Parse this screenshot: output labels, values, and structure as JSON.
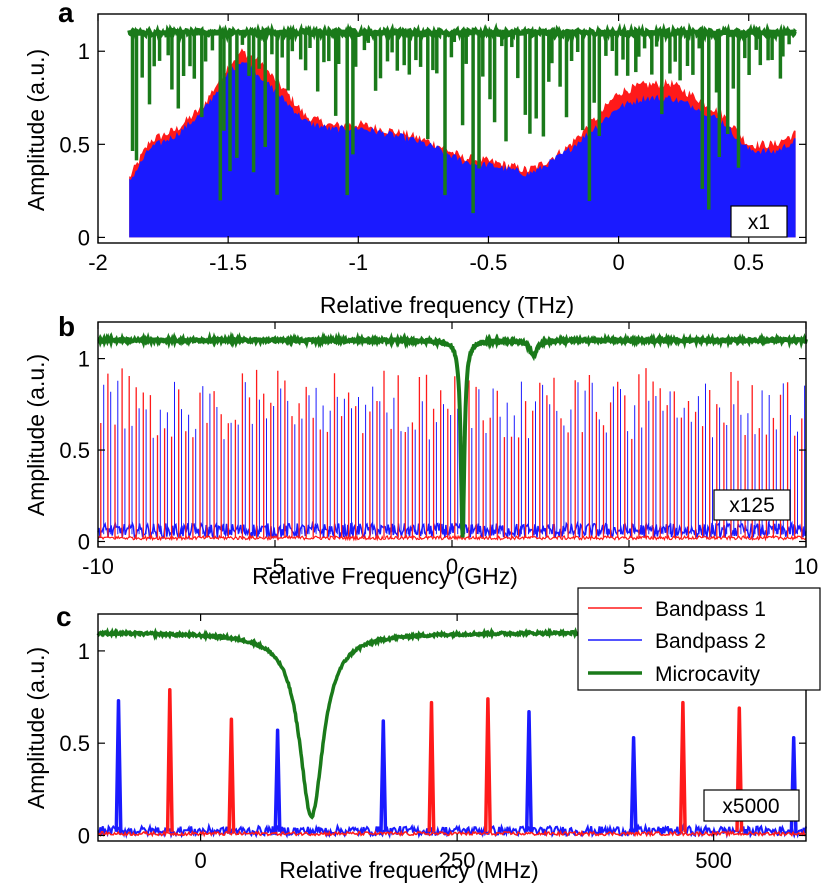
{
  "colors": {
    "red": "#ff1a1a",
    "blue": "#1a1aff",
    "green": "#1a7a1a"
  },
  "chart_data": [
    {
      "panel": "a",
      "type": "area",
      "xlabel": "Relative frequency (THz)",
      "ylabel": "Amplitude (a.u.)",
      "xlim": [
        -2,
        0.72
      ],
      "ylim": [
        -0.03,
        1.2
      ],
      "xticks": [
        "-2",
        "-1.5",
        "-1",
        "-0.5",
        "0",
        "0.5"
      ],
      "xtick_values": [
        -2,
        -1.5,
        -1,
        -0.5,
        0,
        0.5
      ],
      "yticks": [
        "0",
        "0.5",
        "1"
      ],
      "ytick_values": [
        0,
        0.5,
        1
      ],
      "scale_label": "x1",
      "envelope_x": [
        -1.88,
        -1.8,
        -1.7,
        -1.6,
        -1.5,
        -1.45,
        -1.4,
        -1.3,
        -1.2,
        -1.1,
        -1.0,
        -0.9,
        -0.8,
        -0.7,
        -0.6,
        -0.5,
        -0.4,
        -0.35,
        -0.3,
        -0.2,
        -0.1,
        0.0,
        0.1,
        0.2,
        0.3,
        0.4,
        0.5,
        0.6,
        0.68
      ],
      "red_envelope": [
        0.32,
        0.52,
        0.58,
        0.7,
        0.92,
        1.0,
        0.97,
        0.82,
        0.65,
        0.6,
        0.61,
        0.58,
        0.55,
        0.5,
        0.43,
        0.41,
        0.38,
        0.36,
        0.39,
        0.48,
        0.62,
        0.78,
        0.82,
        0.83,
        0.75,
        0.66,
        0.5,
        0.5,
        0.56
      ],
      "blue_envelope": [
        0.3,
        0.48,
        0.55,
        0.67,
        0.88,
        0.95,
        0.9,
        0.76,
        0.62,
        0.58,
        0.59,
        0.56,
        0.53,
        0.48,
        0.41,
        0.39,
        0.36,
        0.34,
        0.37,
        0.46,
        0.58,
        0.7,
        0.75,
        0.75,
        0.7,
        0.62,
        0.47,
        0.46,
        0.52
      ],
      "series": [
        {
          "name": "Microcavity",
          "baseline": 1.1,
          "dip_minimum": 0.12
        }
      ]
    },
    {
      "panel": "b",
      "type": "line",
      "xlabel": "Relative  Frequency (GHz)",
      "ylabel": "Amplitude (a.u.)",
      "xlim": [
        -10,
        10
      ],
      "ylim": [
        -0.03,
        1.2
      ],
      "xticks": [
        "-10",
        "-5",
        "0",
        "5",
        "10"
      ],
      "xtick_values": [
        -10,
        -5,
        0,
        5,
        10
      ],
      "yticks": [
        "0",
        "0.5",
        "1"
      ],
      "ytick_values": [
        0,
        0.5,
        1
      ],
      "scale_label": "x125",
      "series": [
        {
          "name": "Bandpass 1",
          "comb_spacing_ghz": 0.2,
          "peak_range": [
            0.55,
            0.95
          ]
        },
        {
          "name": "Bandpass 2",
          "comb_spacing_ghz": 0.2,
          "peak_range": [
            0.55,
            0.88
          ]
        },
        {
          "name": "Microcavity",
          "baseline": 1.1,
          "dips": [
            {
              "x": 0.3,
              "min": 0.03
            },
            {
              "x": 2.3,
              "min": 1.02
            }
          ]
        }
      ]
    },
    {
      "panel": "c",
      "type": "line",
      "xlabel": "Relative frequency (MHz)",
      "ylabel": "Amplitude (a.u.)",
      "xlim": [
        -100,
        590
      ],
      "ylim": [
        -0.03,
        1.2
      ],
      "xticks": [
        "0",
        "250",
        "500"
      ],
      "xtick_values": [
        0,
        250,
        500
      ],
      "yticks": [
        "0",
        "0.5",
        "1"
      ],
      "ytick_values": [
        0,
        0.5,
        1
      ],
      "scale_label": "x5000",
      "legend_position": "top-right",
      "series": [
        {
          "name": "Bandpass 1",
          "peaks": [
            {
              "x": -30,
              "y": 0.79
            },
            {
              "x": 30,
              "y": 0.63
            },
            {
              "x": 225,
              "y": 0.72
            },
            {
              "x": 280,
              "y": 0.74
            },
            {
              "x": 470,
              "y": 0.72
            },
            {
              "x": 525,
              "y": 0.69
            }
          ]
        },
        {
          "name": "Bandpass 2",
          "peaks": [
            {
              "x": -80,
              "y": 0.73
            },
            {
              "x": 75,
              "y": 0.57
            },
            {
              "x": 178,
              "y": 0.62
            },
            {
              "x": 320,
              "y": 0.67
            },
            {
              "x": 422,
              "y": 0.53
            },
            {
              "x": 578,
              "y": 0.53
            }
          ]
        },
        {
          "name": "Microcavity",
          "baseline": 1.1,
          "dip": {
            "x": 108,
            "min": 0.1,
            "halfwidth": 14
          }
        }
      ]
    }
  ],
  "legend": {
    "items": [
      {
        "name": "Bandpass 1",
        "color": "#ff1a1a"
      },
      {
        "name": "Bandpass 2",
        "color": "#1a1aff"
      },
      {
        "name": "Microcavity",
        "color": "#1a7a1a"
      }
    ]
  }
}
